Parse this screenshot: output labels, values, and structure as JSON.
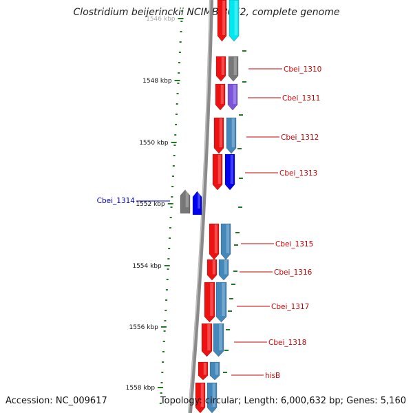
{
  "title": "Clostridium beijerinckii NCIMB 8052, complete genome",
  "accession": "Accession: NC_009617",
  "summary": "Topology: circular; Length: 6,000,632 bp; Genes: 5,160",
  "colors": {
    "cds_red": "#ee1111",
    "tick_green": "#227722",
    "label_red": "#cc0000",
    "label_blue": "#0000cc",
    "backbone": "#8a8a8a"
  },
  "scale_ticks": [
    {
      "label": "1546 kbp",
      "faded": true
    },
    {
      "label": "1548 kbp",
      "faded": false
    },
    {
      "label": "1550 kbp",
      "faded": false
    },
    {
      "label": "1552 kbp",
      "faded": false
    },
    {
      "label": "1554 kbp",
      "faded": false
    },
    {
      "label": "1556 kbp",
      "faded": false
    },
    {
      "label": "1558 kbp",
      "faded": false
    }
  ],
  "gene_labels": [
    {
      "name": "Cbei_1310",
      "side": "right",
      "color": "red"
    },
    {
      "name": "Cbei_1311",
      "side": "right",
      "color": "red"
    },
    {
      "name": "Cbei_1312",
      "side": "right",
      "color": "red"
    },
    {
      "name": "Cbei_1313",
      "side": "right",
      "color": "red"
    },
    {
      "name": "Cbei_1314",
      "side": "left",
      "color": "blue"
    },
    {
      "name": "Cbei_1315",
      "side": "right",
      "color": "red"
    },
    {
      "name": "Cbei_1316",
      "side": "right",
      "color": "red"
    },
    {
      "name": "Cbei_1317",
      "side": "right",
      "color": "red"
    },
    {
      "name": "Cbei_1318",
      "side": "right",
      "color": "red"
    },
    {
      "name": "hisB",
      "side": "right",
      "color": "red"
    }
  ],
  "features": [
    {
      "strand": "forward",
      "color": "#ee1111"
    },
    {
      "strand": "forward",
      "color": "#00e8f0"
    },
    {
      "strand": "forward",
      "color": "#ee1111"
    },
    {
      "strand": "forward",
      "color": "#777777"
    },
    {
      "strand": "forward",
      "color": "#ee1111"
    },
    {
      "strand": "forward",
      "color": "#7b55d8"
    },
    {
      "strand": "forward",
      "color": "#ee1111"
    },
    {
      "strand": "forward",
      "color": "#4488bb"
    },
    {
      "strand": "forward",
      "color": "#ee1111"
    },
    {
      "strand": "forward",
      "color": "#0000ee"
    },
    {
      "strand": "reverse",
      "color": "#777777"
    },
    {
      "strand": "reverse",
      "color": "#0000ee"
    },
    {
      "strand": "forward",
      "color": "#ee1111"
    },
    {
      "strand": "forward",
      "color": "#4488bb"
    },
    {
      "strand": "forward",
      "color": "#ee1111"
    },
    {
      "strand": "forward",
      "color": "#4488bb"
    },
    {
      "strand": "forward",
      "color": "#ee1111"
    },
    {
      "strand": "forward",
      "color": "#4488bb"
    },
    {
      "strand": "forward",
      "color": "#ee1111"
    },
    {
      "strand": "forward",
      "color": "#4488bb"
    },
    {
      "strand": "forward",
      "color": "#ee1111"
    },
    {
      "strand": "forward",
      "color": "#4488bb"
    },
    {
      "strand": "forward",
      "color": "#ee1111"
    },
    {
      "strand": "forward",
      "color": "#4488bb"
    }
  ]
}
